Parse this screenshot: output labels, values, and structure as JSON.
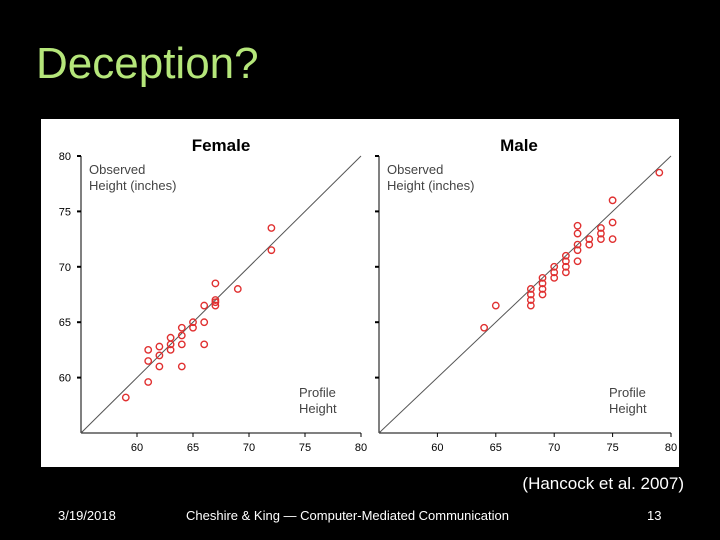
{
  "slide": {
    "title": "Deception?",
    "citation": "(Hancock et al. 2007)",
    "footer_date": "3/19/2018",
    "footer_center": "Cheshire & King — Computer-Mediated Communication",
    "page_number": "13"
  },
  "chart_data": [
    {
      "type": "scatter",
      "title": "Female",
      "ylabel": "Observed Height (inches)",
      "xlabel": "Profile Height",
      "xlim": [
        55,
        80
      ],
      "ylim": [
        55,
        80
      ],
      "x_ticks": [
        60,
        65,
        70,
        75,
        80
      ],
      "y_ticks": [
        60,
        65,
        70,
        75,
        80
      ],
      "reference_line": "y = x",
      "marker_color": "#e03030",
      "points": [
        [
          59,
          58.2
        ],
        [
          61,
          59.6
        ],
        [
          61,
          61.5
        ],
        [
          61,
          62.5
        ],
        [
          62,
          61.0
        ],
        [
          62,
          62.0
        ],
        [
          62,
          62.8
        ],
        [
          63,
          62.5
        ],
        [
          63,
          63.0
        ],
        [
          63,
          63.6
        ],
        [
          64,
          61.0
        ],
        [
          64,
          63.0
        ],
        [
          64,
          63.8
        ],
        [
          64,
          64.5
        ],
        [
          65,
          64.5
        ],
        [
          65,
          65.0
        ],
        [
          66,
          63.0
        ],
        [
          66,
          65.0
        ],
        [
          66,
          66.5
        ],
        [
          67,
          66.5
        ],
        [
          67,
          66.8
        ],
        [
          67,
          67.0
        ],
        [
          67,
          68.5
        ],
        [
          69,
          68.0
        ],
        [
          72,
          71.5
        ],
        [
          72,
          73.5
        ]
      ]
    },
    {
      "type": "scatter",
      "title": "Male",
      "ylabel": "Observed Height (inches)",
      "xlabel": "Profile Height",
      "xlim": [
        55,
        80
      ],
      "ylim": [
        55,
        80
      ],
      "x_ticks": [
        60,
        65,
        70,
        75,
        80
      ],
      "y_ticks": [],
      "reference_line": "y = x",
      "marker_color": "#e03030",
      "points": [
        [
          64,
          64.5
        ],
        [
          65,
          66.5
        ],
        [
          68,
          66.5
        ],
        [
          68,
          67.0
        ],
        [
          68,
          67.5
        ],
        [
          68,
          68.0
        ],
        [
          69,
          67.5
        ],
        [
          69,
          68.0
        ],
        [
          69,
          68.5
        ],
        [
          69,
          69.0
        ],
        [
          70,
          69.0
        ],
        [
          70,
          69.5
        ],
        [
          70,
          70.0
        ],
        [
          71,
          69.5
        ],
        [
          71,
          70.0
        ],
        [
          71,
          70.5
        ],
        [
          71,
          71.0
        ],
        [
          72,
          70.5
        ],
        [
          72,
          71.5
        ],
        [
          72,
          72.0
        ],
        [
          72,
          73.0
        ],
        [
          72,
          73.7
        ],
        [
          73,
          72.0
        ],
        [
          73,
          72.5
        ],
        [
          74,
          72.5
        ],
        [
          74,
          73.0
        ],
        [
          74,
          73.5
        ],
        [
          75,
          72.5
        ],
        [
          75,
          74.0
        ],
        [
          75,
          76.0
        ],
        [
          79,
          78.5
        ]
      ]
    }
  ]
}
